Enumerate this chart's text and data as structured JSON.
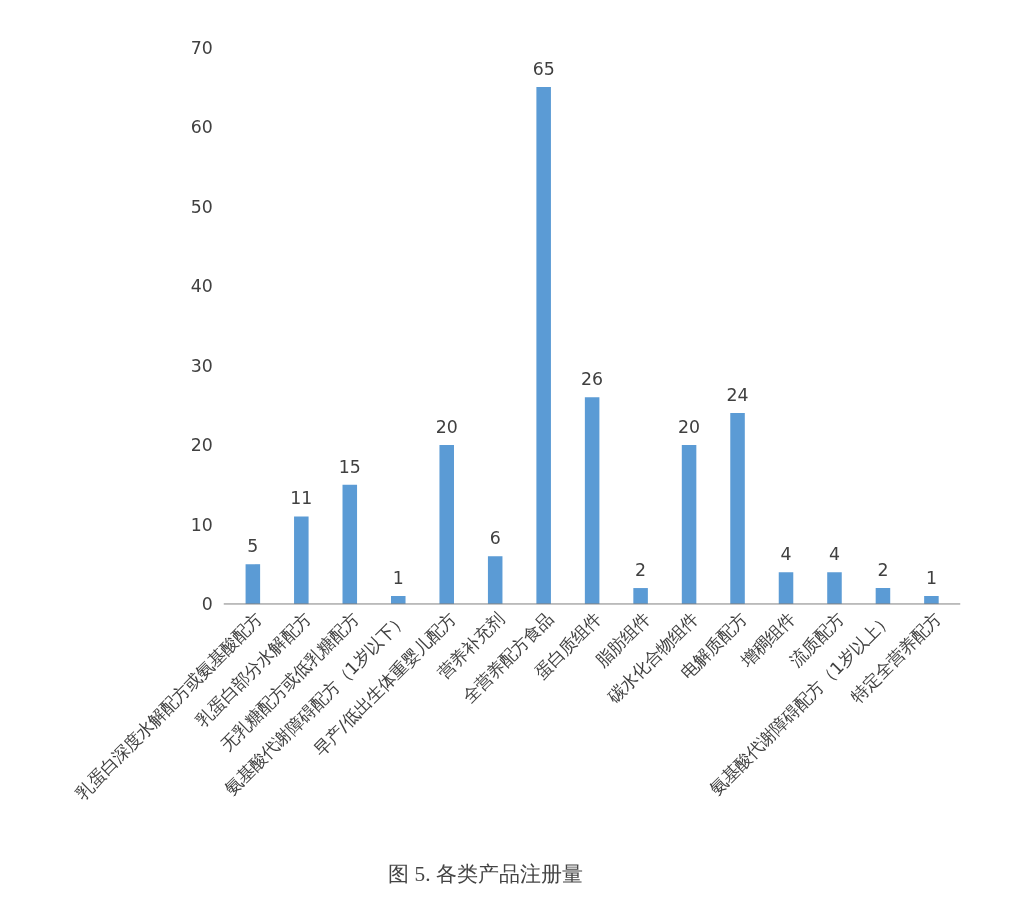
{
  "chart_data": {
    "type": "bar",
    "title": "图 5. 各类产品注册量",
    "categories": [
      "乳蛋白深度水解配方或氨基酸配方",
      "乳蛋白部分水解配方",
      "无乳糖配方或低乳糖配方",
      "氨基酸代谢障碍配方（1岁以下）",
      "早产/低出生体重婴儿配方",
      "营养补充剂",
      "全营养配方食品",
      "蛋白质组件",
      "脂肪组件",
      "碳水化合物组件",
      "电解质配方",
      "增稠组件",
      "流质配方",
      "氨基酸代谢障碍配方（1岁以上）",
      "特定全营养配方"
    ],
    "values": [
      5,
      11,
      15,
      1,
      20,
      6,
      65,
      26,
      2,
      20,
      24,
      4,
      4,
      2,
      1
    ],
    "color": "#5b9bd5",
    "ylim": [
      0,
      70
    ],
    "yticks": [
      0,
      10,
      20,
      30,
      40,
      50,
      60,
      70
    ],
    "grid": false,
    "data_labels": true
  }
}
